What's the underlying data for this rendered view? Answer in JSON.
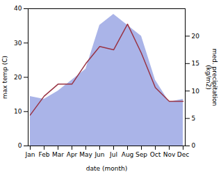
{
  "chart_data": {
    "type": "line",
    "categories": [
      "Jan",
      "Feb",
      "Mar",
      "Apr",
      "May",
      "Jun",
      "Jul",
      "Aug",
      "Sep",
      "Oct",
      "Nov",
      "Dec"
    ],
    "xlabel": "date (month)",
    "ylabel": "max temp (C)",
    "y2label": "med. precipitation\n(kg/m2)",
    "ylim": [
      0,
      40
    ],
    "yticks": [
      0,
      10,
      20,
      30,
      40
    ],
    "y2lim": [
      0,
      25
    ],
    "y2ticks": [
      0,
      5,
      10,
      15,
      20
    ],
    "series": [
      {
        "type": "area",
        "axis": "y2",
        "color": "#aab4e8",
        "values": [
          9.0,
          8.5,
          10.0,
          12.0,
          14.0,
          22.0,
          24.0,
          22.0,
          20.0,
          12.0,
          8.0,
          8.5
        ]
      },
      {
        "type": "line",
        "color": "#993344",
        "values": [
          9.0,
          14.5,
          18.0,
          18.0,
          24.0,
          29.0,
          28.0,
          35.5,
          27.0,
          17.0,
          13.0,
          13.0
        ]
      }
    ]
  }
}
